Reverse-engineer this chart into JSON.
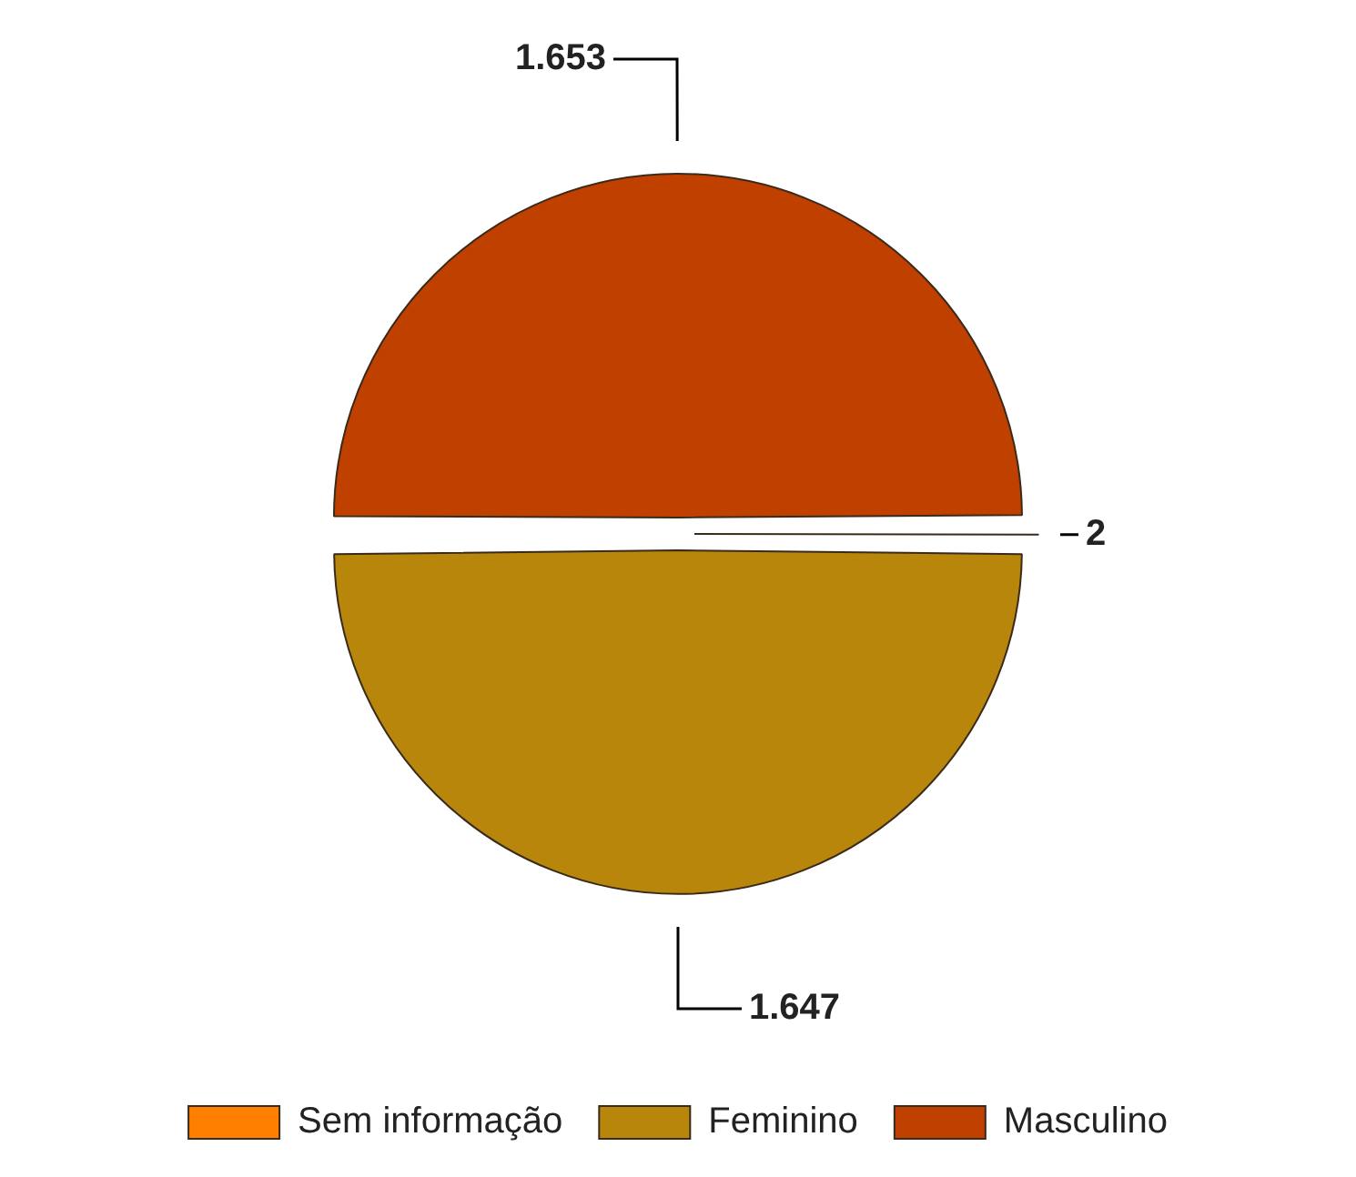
{
  "chart_data": {
    "type": "pie",
    "categories": [
      "Sem informação",
      "Feminino",
      "Masculino"
    ],
    "values": [
      2,
      1647,
      1653
    ],
    "colors": [
      "#ff8000",
      "#b8860b",
      "#c04000"
    ],
    "value_labels": [
      "2",
      "1.647",
      "1.653"
    ],
    "legend": "bottom"
  }
}
